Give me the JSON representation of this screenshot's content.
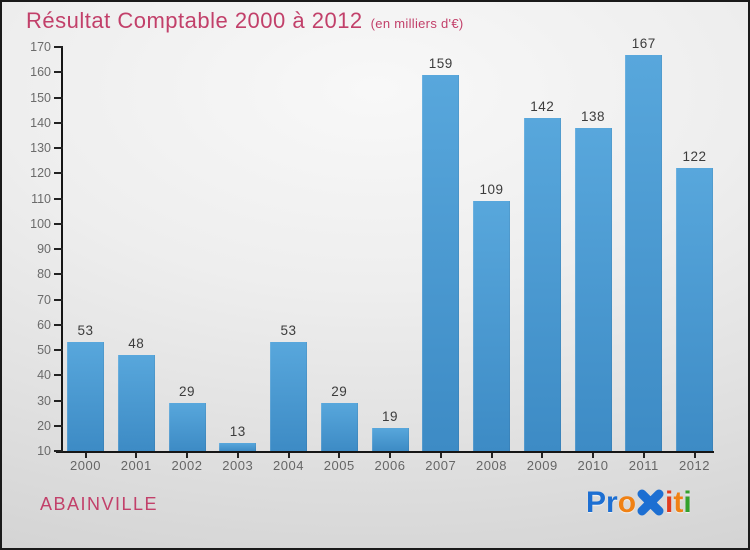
{
  "header": {
    "title": "Résultat Comptable 2000 à 2012",
    "subtitle": "(en milliers d'€)",
    "title_color": "#c2406a"
  },
  "footer": {
    "name": "ABAINVILLE",
    "name_color": "#c2406a"
  },
  "logo": {
    "name": "Proxiti",
    "letters": [
      {
        "ch": "P",
        "color": "#1d6fd2"
      },
      {
        "ch": "r",
        "color": "#1d6fd2"
      },
      {
        "ch": "o",
        "color": "#f08114"
      },
      {
        "ch": "x",
        "color": "#1d6fd2",
        "icon": "x-flower"
      },
      {
        "ch": "i",
        "color": "#e23b1e"
      },
      {
        "ch": "t",
        "color": "#f08114"
      },
      {
        "ch": "i",
        "color": "#33a12c"
      }
    ]
  },
  "chart_data": {
    "type": "bar",
    "title": "Résultat Comptable 2000 à 2012",
    "subtitle": "(en milliers d'€)",
    "categories": [
      "2000",
      "2001",
      "2002",
      "2003",
      "2004",
      "2005",
      "2006",
      "2007",
      "2008",
      "2009",
      "2010",
      "2011",
      "2012"
    ],
    "values": [
      53,
      48,
      29,
      13,
      53,
      29,
      19,
      159,
      109,
      142,
      138,
      167,
      122
    ],
    "xlabel": "",
    "ylabel": "",
    "ylim": [
      10,
      170
    ],
    "ytick_step": 10,
    "grid": false,
    "legend": false,
    "bar_color_top": "#58a7dc",
    "bar_color_bottom": "#3d8bc5",
    "axis_color": "#161616",
    "tick_label_color": "#6b6b6b",
    "value_label_color": "#3c3c3c"
  }
}
